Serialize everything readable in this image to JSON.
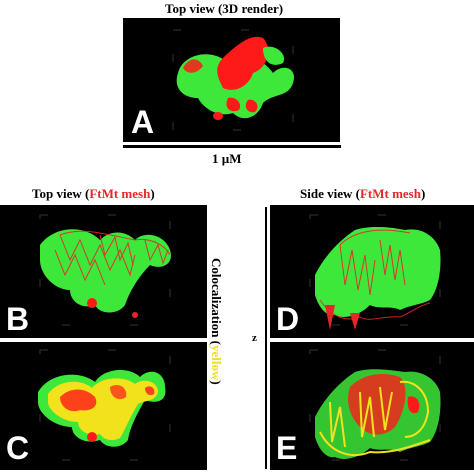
{
  "top_title": "Top view (3D render)",
  "scale_label": "1 µM",
  "left_title": {
    "prefix": "Top view (",
    "highlight": "FtMt mesh",
    "suffix": ")"
  },
  "right_title": {
    "prefix": "Side view (",
    "highlight": "FtMt mesh",
    "suffix": ")"
  },
  "coloc_label": {
    "prefix": "Colocalization (",
    "highlight": "yellow",
    "suffix": ")"
  },
  "z_label": "z",
  "panels": {
    "A": "A",
    "B": "B",
    "C": "C",
    "D": "D",
    "E": "E"
  },
  "colors": {
    "green": "#3ee83a",
    "red": "#ff1a1a",
    "yellow": "#f2e21c",
    "panel_bg": "#000000"
  }
}
